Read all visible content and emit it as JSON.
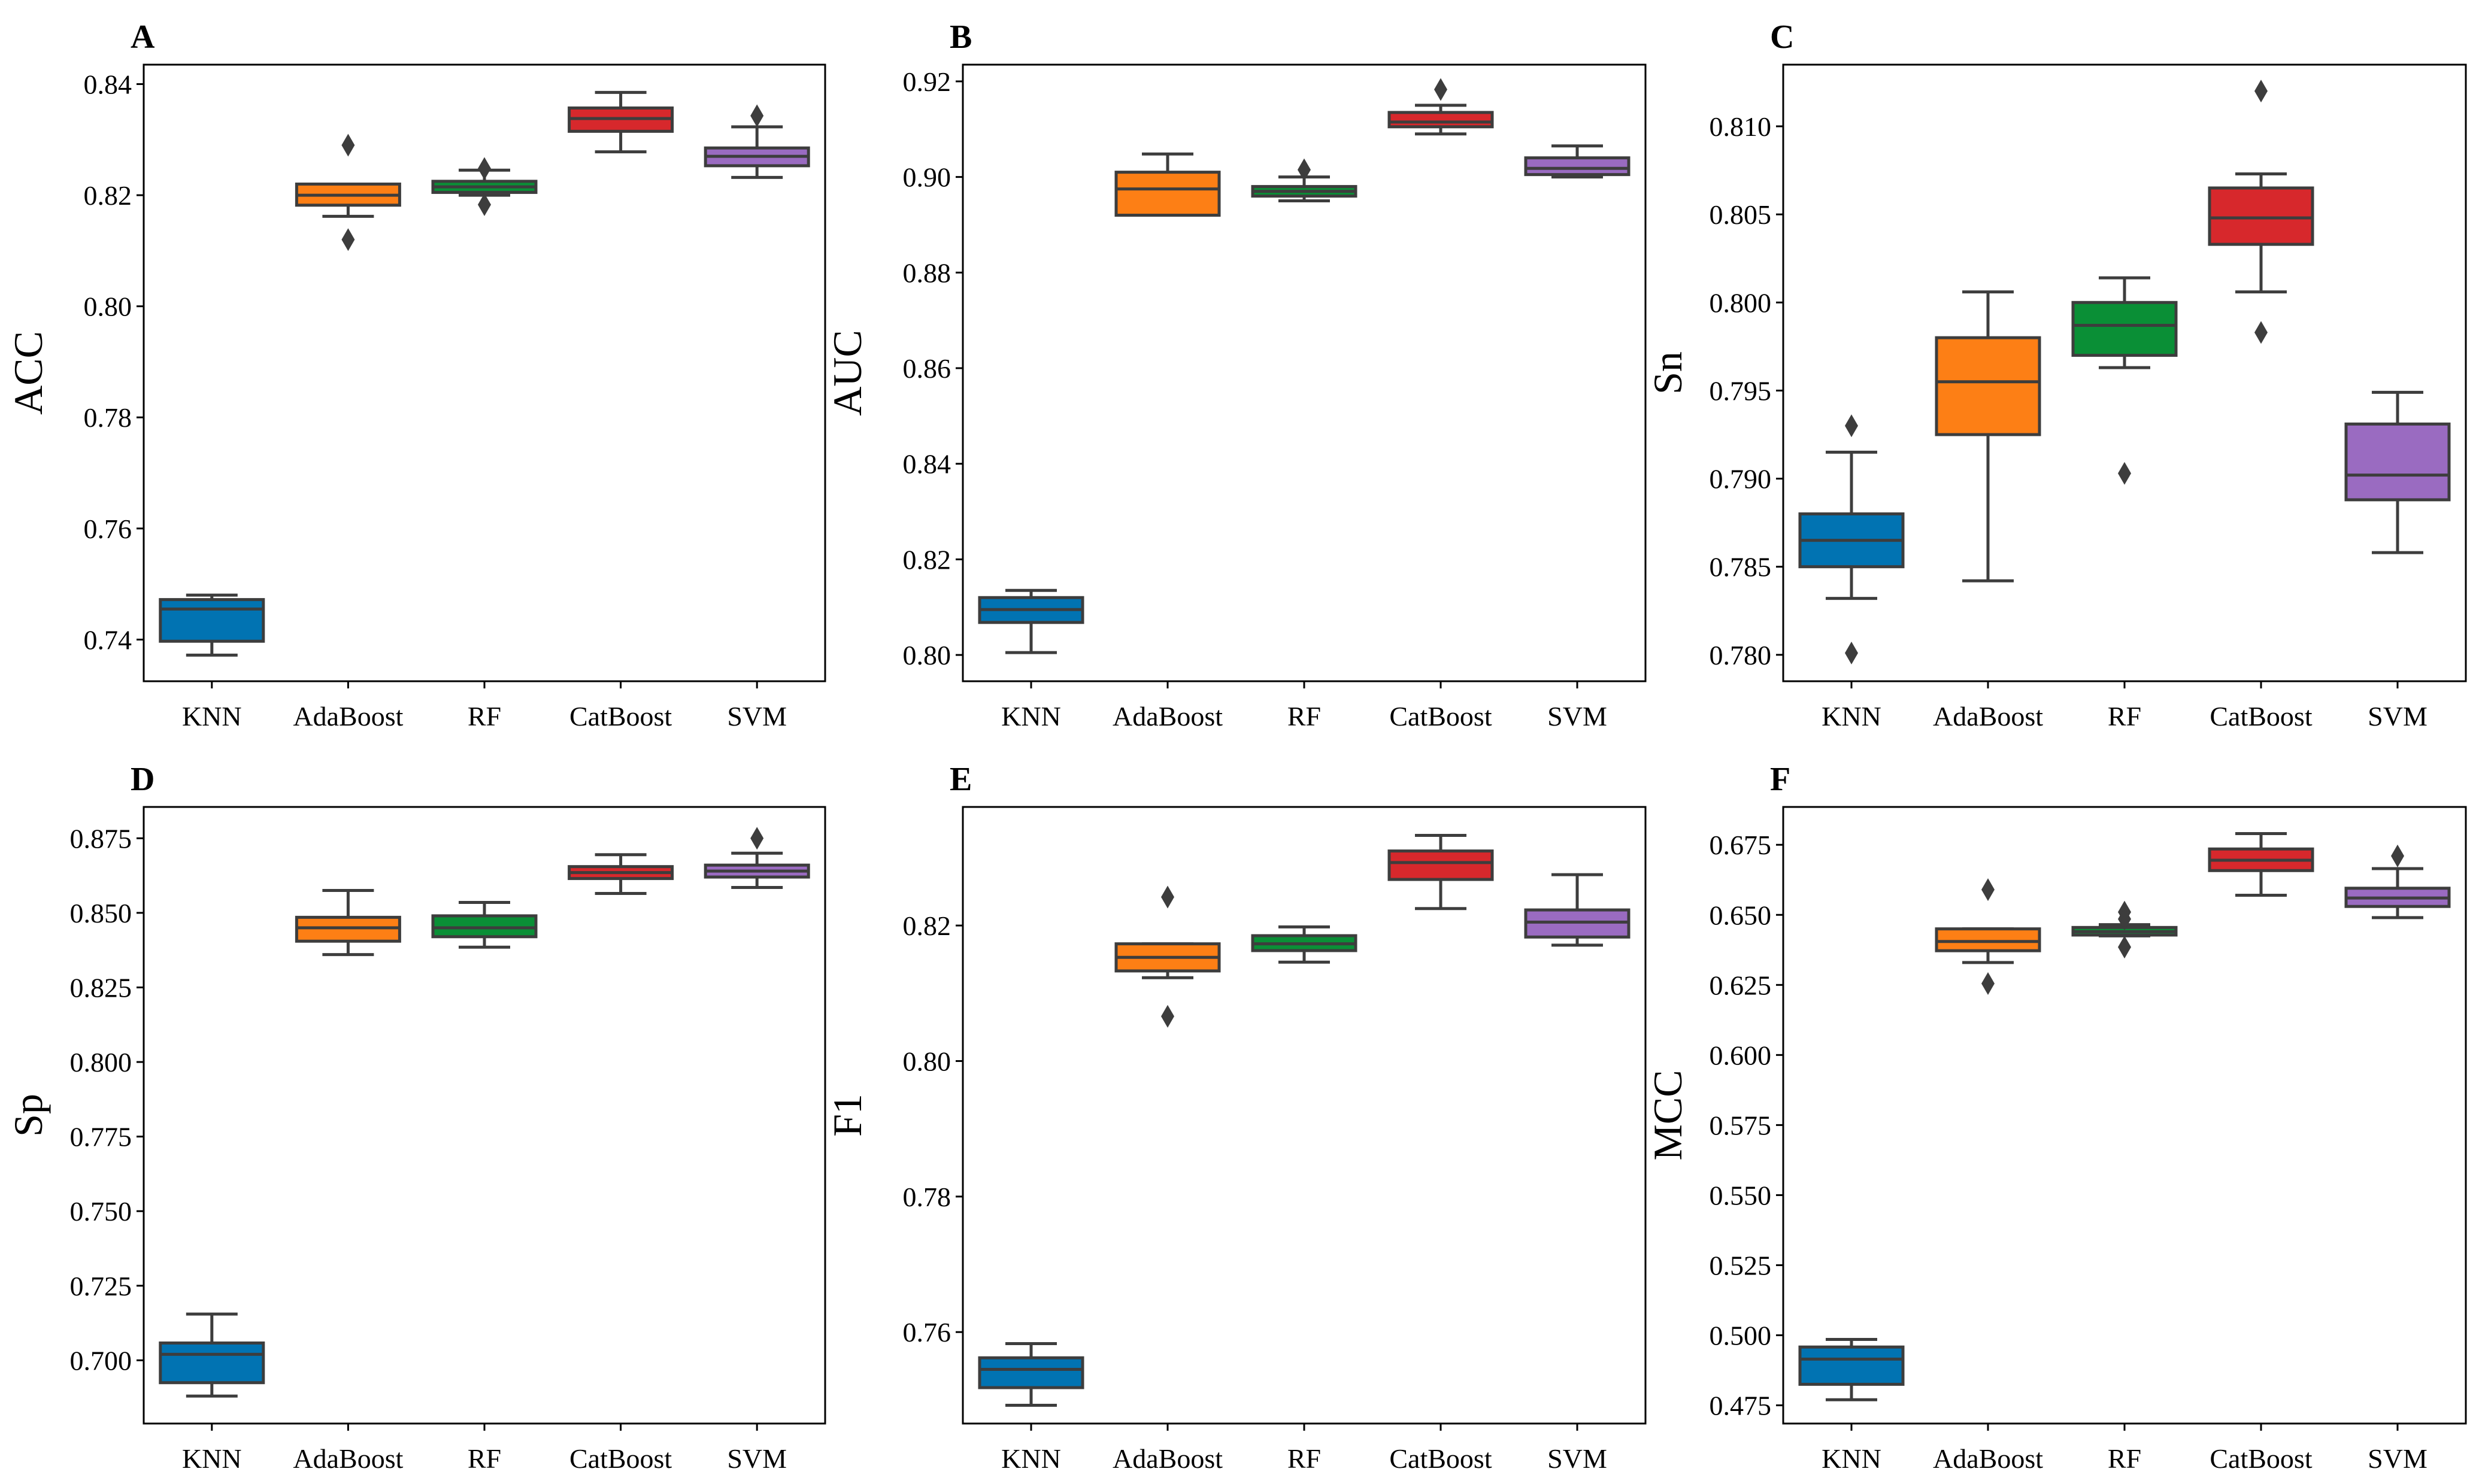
{
  "colors": {
    "KNN": "#0173b2",
    "AdaBoost": "#fd7f15",
    "RF": "#0a8f36",
    "CatBoost": "#d7282c",
    "SVM": "#9a6bc1"
  },
  "chart_data": [
    {
      "type": "box",
      "panel": "A",
      "ylabel": "ACC",
      "categories": [
        "KNN",
        "AdaBoost",
        "RF",
        "CatBoost",
        "SVM"
      ],
      "ylim": [
        0.7325,
        0.8435
      ],
      "yticks": [
        0.74,
        0.76,
        0.78,
        0.8,
        0.82,
        0.84
      ],
      "ytick_labels": [
        "0.74",
        "0.76",
        "0.78",
        "0.80",
        "0.82",
        "0.84"
      ],
      "boxes": [
        {
          "name": "KNN",
          "whislo": 0.7372,
          "q1": 0.7397,
          "med": 0.7455,
          "q3": 0.7472,
          "whishi": 0.748,
          "fliers": []
        },
        {
          "name": "AdaBoost",
          "whislo": 0.8162,
          "q1": 0.8182,
          "med": 0.82,
          "q3": 0.822,
          "whishi": 0.822,
          "fliers": [
            0.829,
            0.812
          ]
        },
        {
          "name": "RF",
          "whislo": 0.82,
          "q1": 0.8205,
          "med": 0.8215,
          "q3": 0.8225,
          "whishi": 0.8245,
          "fliers": [
            0.8248,
            0.8183
          ]
        },
        {
          "name": "CatBoost",
          "whislo": 0.8278,
          "q1": 0.8315,
          "med": 0.8338,
          "q3": 0.8357,
          "whishi": 0.8385,
          "fliers": []
        },
        {
          "name": "SVM",
          "whislo": 0.8232,
          "q1": 0.8253,
          "med": 0.827,
          "q3": 0.8285,
          "whishi": 0.8323,
          "fliers": [
            0.8343
          ]
        }
      ]
    },
    {
      "type": "box",
      "panel": "B",
      "ylabel": "AUC",
      "categories": [
        "KNN",
        "AdaBoost",
        "RF",
        "CatBoost",
        "SVM"
      ],
      "ylim": [
        0.7945,
        0.9235
      ],
      "yticks": [
        0.8,
        0.82,
        0.84,
        0.86,
        0.88,
        0.9,
        0.92
      ],
      "ytick_labels": [
        "0.80",
        "0.82",
        "0.84",
        "0.86",
        "0.88",
        "0.90",
        "0.92"
      ],
      "boxes": [
        {
          "name": "KNN",
          "whislo": 0.8005,
          "q1": 0.8068,
          "med": 0.8095,
          "q3": 0.812,
          "whishi": 0.8135,
          "fliers": []
        },
        {
          "name": "AdaBoost",
          "whislo": 0.892,
          "q1": 0.892,
          "med": 0.8975,
          "q3": 0.901,
          "whishi": 0.9048,
          "fliers": []
        },
        {
          "name": "RF",
          "whislo": 0.895,
          "q1": 0.896,
          "med": 0.897,
          "q3": 0.898,
          "whishi": 0.9,
          "fliers": [
            0.9015
          ]
        },
        {
          "name": "CatBoost",
          "whislo": 0.909,
          "q1": 0.9105,
          "med": 0.9115,
          "q3": 0.9135,
          "whishi": 0.915,
          "fliers": [
            0.9183
          ]
        },
        {
          "name": "SVM",
          "whislo": 0.9,
          "q1": 0.9005,
          "med": 0.9018,
          "q3": 0.904,
          "whishi": 0.9065,
          "fliers": []
        }
      ]
    },
    {
      "type": "box",
      "panel": "C",
      "ylabel": "Sn",
      "categories": [
        "KNN",
        "AdaBoost",
        "RF",
        "CatBoost",
        "SVM"
      ],
      "ylim": [
        0.7785,
        0.8135
      ],
      "yticks": [
        0.78,
        0.785,
        0.79,
        0.795,
        0.8,
        0.805,
        0.81
      ],
      "ytick_labels": [
        "0.780",
        "0.785",
        "0.790",
        "0.795",
        "0.800",
        "0.805",
        "0.810"
      ],
      "boxes": [
        {
          "name": "KNN",
          "whislo": 0.7832,
          "q1": 0.785,
          "med": 0.7865,
          "q3": 0.788,
          "whishi": 0.7915,
          "fliers": [
            0.793,
            0.7801
          ]
        },
        {
          "name": "AdaBoost",
          "whislo": 0.7842,
          "q1": 0.7925,
          "med": 0.7955,
          "q3": 0.798,
          "whishi": 0.8006,
          "fliers": []
        },
        {
          "name": "RF",
          "whislo": 0.7963,
          "q1": 0.797,
          "med": 0.7987,
          "q3": 0.8,
          "whishi": 0.8014,
          "fliers": [
            0.7903
          ]
        },
        {
          "name": "CatBoost",
          "whislo": 0.8006,
          "q1": 0.8033,
          "med": 0.8048,
          "q3": 0.8065,
          "whishi": 0.8073,
          "fliers": [
            0.812,
            0.7983
          ]
        },
        {
          "name": "SVM",
          "whislo": 0.7858,
          "q1": 0.7888,
          "med": 0.7902,
          "q3": 0.7931,
          "whishi": 0.7949,
          "fliers": []
        }
      ]
    },
    {
      "type": "box",
      "panel": "D",
      "ylabel": "Sp",
      "categories": [
        "KNN",
        "AdaBoost",
        "RF",
        "CatBoost",
        "SVM"
      ],
      "ylim": [
        0.6788,
        0.8855
      ],
      "yticks": [
        0.7,
        0.725,
        0.75,
        0.775,
        0.8,
        0.825,
        0.85,
        0.875
      ],
      "ytick_labels": [
        "0.700",
        "0.725",
        "0.750",
        "0.775",
        "0.800",
        "0.825",
        "0.850",
        "0.875"
      ],
      "boxes": [
        {
          "name": "KNN",
          "whislo": 0.688,
          "q1": 0.6925,
          "med": 0.702,
          "q3": 0.7058,
          "whishi": 0.7155,
          "fliers": []
        },
        {
          "name": "AdaBoost",
          "whislo": 0.836,
          "q1": 0.8405,
          "med": 0.845,
          "q3": 0.8485,
          "whishi": 0.8575,
          "fliers": []
        },
        {
          "name": "RF",
          "whislo": 0.8385,
          "q1": 0.842,
          "med": 0.845,
          "q3": 0.849,
          "whishi": 0.8535,
          "fliers": []
        },
        {
          "name": "CatBoost",
          "whislo": 0.8565,
          "q1": 0.8615,
          "med": 0.8635,
          "q3": 0.8655,
          "whishi": 0.8695,
          "fliers": []
        },
        {
          "name": "SVM",
          "whislo": 0.8585,
          "q1": 0.862,
          "med": 0.864,
          "q3": 0.866,
          "whishi": 0.87,
          "fliers": [
            0.875
          ]
        }
      ]
    },
    {
      "type": "box",
      "panel": "E",
      "ylabel": "F1",
      "categories": [
        "KNN",
        "AdaBoost",
        "RF",
        "CatBoost",
        "SVM"
      ],
      "ylim": [
        0.7465,
        0.8375
      ],
      "yticks": [
        0.76,
        0.78,
        0.8,
        0.82
      ],
      "ytick_labels": [
        "0.76",
        "0.78",
        "0.80",
        "0.82"
      ],
      "boxes": [
        {
          "name": "KNN",
          "whislo": 0.7492,
          "q1": 0.7518,
          "med": 0.7545,
          "q3": 0.7562,
          "whishi": 0.7583,
          "fliers": []
        },
        {
          "name": "AdaBoost",
          "whislo": 0.8123,
          "q1": 0.8133,
          "med": 0.8153,
          "q3": 0.8173,
          "whishi": 0.8173,
          "fliers": [
            0.8242,
            0.8066
          ]
        },
        {
          "name": "RF",
          "whislo": 0.8146,
          "q1": 0.8163,
          "med": 0.8173,
          "q3": 0.8185,
          "whishi": 0.8198,
          "fliers": []
        },
        {
          "name": "CatBoost",
          "whislo": 0.8225,
          "q1": 0.8268,
          "med": 0.8293,
          "q3": 0.831,
          "whishi": 0.8333,
          "fliers": []
        },
        {
          "name": "SVM",
          "whislo": 0.8171,
          "q1": 0.8183,
          "med": 0.8205,
          "q3": 0.8223,
          "whishi": 0.8275,
          "fliers": []
        }
      ]
    },
    {
      "type": "box",
      "panel": "F",
      "ylabel": "MCC",
      "categories": [
        "KNN",
        "AdaBoost",
        "RF",
        "CatBoost",
        "SVM"
      ],
      "ylim": [
        0.4685,
        0.6885
      ],
      "yticks": [
        0.475,
        0.5,
        0.525,
        0.55,
        0.575,
        0.6,
        0.625,
        0.65,
        0.675
      ],
      "ytick_labels": [
        "0.475",
        "0.500",
        "0.525",
        "0.550",
        "0.575",
        "0.600",
        "0.625",
        "0.650",
        "0.675"
      ],
      "boxes": [
        {
          "name": "KNN",
          "whislo": 0.477,
          "q1": 0.4825,
          "med": 0.4915,
          "q3": 0.4958,
          "whishi": 0.4985,
          "fliers": []
        },
        {
          "name": "AdaBoost",
          "whislo": 0.633,
          "q1": 0.6372,
          "med": 0.6405,
          "q3": 0.645,
          "whishi": 0.645,
          "fliers": [
            0.659,
            0.6255
          ]
        },
        {
          "name": "RF",
          "whislo": 0.6425,
          "q1": 0.6428,
          "med": 0.644,
          "q3": 0.6455,
          "whishi": 0.6465,
          "fliers": [
            0.651,
            0.6485,
            0.6385
          ]
        },
        {
          "name": "CatBoost",
          "whislo": 0.657,
          "q1": 0.6658,
          "med": 0.6695,
          "q3": 0.6735,
          "whishi": 0.679,
          "fliers": []
        },
        {
          "name": "SVM",
          "whislo": 0.649,
          "q1": 0.653,
          "med": 0.656,
          "q3": 0.6595,
          "whishi": 0.6665,
          "fliers": [
            0.671
          ]
        }
      ]
    }
  ]
}
